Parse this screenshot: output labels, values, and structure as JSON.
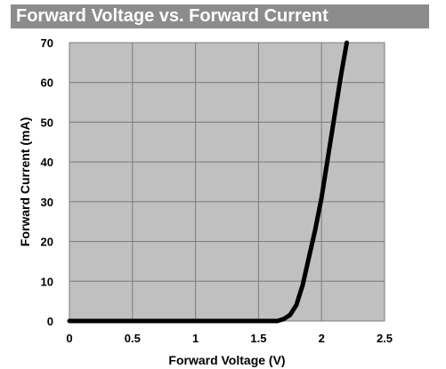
{
  "chart_data": {
    "type": "line",
    "title": "Forward Voltage vs. Forward Current",
    "xlabel": "Forward Voltage (V)",
    "ylabel": "Forward Current (mA)",
    "xlim": [
      0,
      2.5
    ],
    "ylim": [
      0,
      70
    ],
    "x_ticks": [
      0,
      0.5,
      1,
      1.5,
      2,
      2.5
    ],
    "x_tick_labels": [
      "0",
      "0.5",
      "1",
      "1.5",
      "2",
      "2.5"
    ],
    "y_ticks": [
      0,
      10,
      20,
      30,
      40,
      50,
      60,
      70
    ],
    "y_tick_labels": [
      "0",
      "10",
      "20",
      "30",
      "40",
      "50",
      "60",
      "70"
    ],
    "grid": true,
    "background": "#c0c0c0",
    "series": [
      {
        "color": "#000000",
        "x": [
          0,
          0.5,
          1.0,
          1.5,
          1.65,
          1.7,
          1.75,
          1.8,
          1.85,
          1.9,
          1.95,
          2.0,
          2.05,
          2.1,
          2.15,
          2.2
        ],
        "y": [
          0,
          0,
          0,
          0,
          0,
          0.5,
          1.5,
          4,
          9,
          16,
          23,
          31,
          41,
          51,
          61,
          70
        ]
      }
    ]
  }
}
